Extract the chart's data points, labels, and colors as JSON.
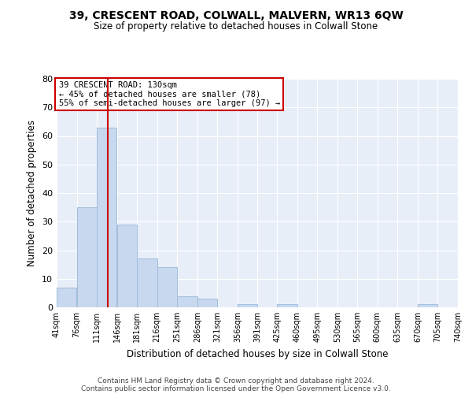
{
  "title": "39, CRESCENT ROAD, COLWALL, MALVERN, WR13 6QW",
  "subtitle": "Size of property relative to detached houses in Colwall Stone",
  "xlabel": "Distribution of detached houses by size in Colwall Stone",
  "ylabel": "Number of detached properties",
  "bar_color": "#c8d8ee",
  "bar_edge_color": "#a0bedd",
  "bins": [
    41,
    76,
    111,
    146,
    181,
    216,
    251,
    286,
    321,
    356,
    391,
    425,
    460,
    495,
    530,
    565,
    600,
    635,
    670,
    705,
    740
  ],
  "counts": [
    7,
    35,
    63,
    29,
    17,
    14,
    4,
    3,
    0,
    1,
    0,
    1,
    0,
    0,
    0,
    0,
    0,
    0,
    1,
    0
  ],
  "vline_x": 130,
  "vline_color": "#cc0000",
  "annotation_title": "39 CRESCENT ROAD: 130sqm",
  "annotation_line1": "← 45% of detached houses are smaller (78)",
  "annotation_line2": "55% of semi-detached houses are larger (97) →",
  "annotation_box_color": "#ffffff",
  "annotation_box_edge_color": "#cc0000",
  "ylim": [
    0,
    80
  ],
  "yticks": [
    0,
    10,
    20,
    30,
    40,
    50,
    60,
    70,
    80
  ],
  "tick_labels": [
    "41sqm",
    "76sqm",
    "111sqm",
    "146sqm",
    "181sqm",
    "216sqm",
    "251sqm",
    "286sqm",
    "321sqm",
    "356sqm",
    "391sqm",
    "425sqm",
    "460sqm",
    "495sqm",
    "530sqm",
    "565sqm",
    "600sqm",
    "635sqm",
    "670sqm",
    "705sqm",
    "740sqm"
  ],
  "footer1": "Contains HM Land Registry data © Crown copyright and database right 2024.",
  "footer2": "Contains public sector information licensed under the Open Government Licence v3.0.",
  "plot_bg_color": "#e8eef8",
  "fig_bg_color": "#ffffff",
  "grid_color": "#ffffff"
}
